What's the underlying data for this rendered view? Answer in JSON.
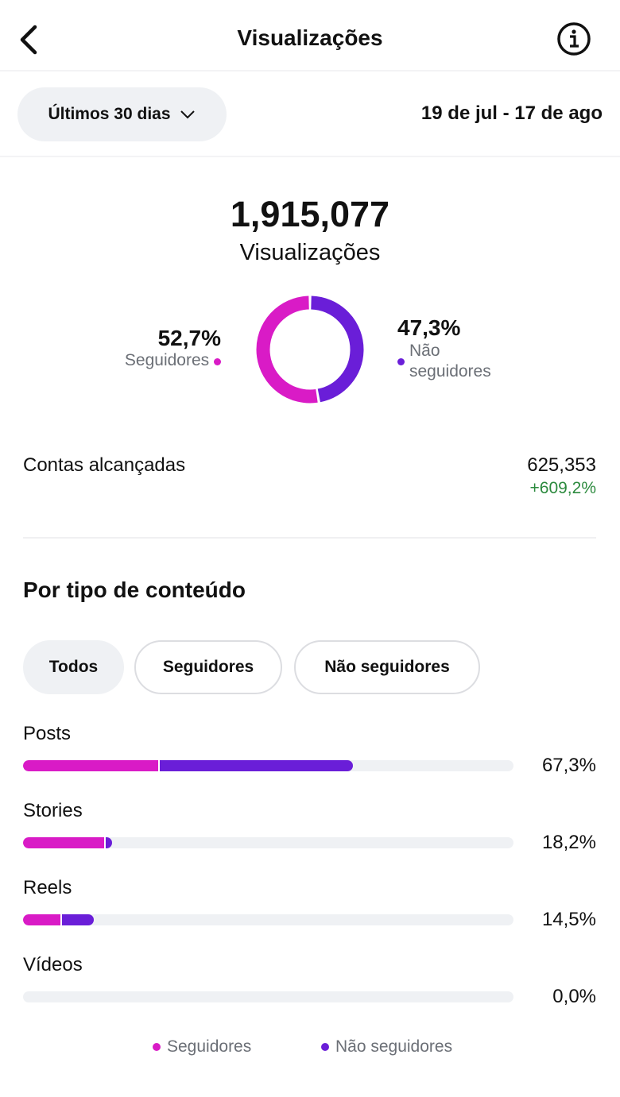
{
  "header": {
    "title": "Visualizações"
  },
  "filter": {
    "period": "Últimos 30 dias",
    "date_range": "19 de jul - 17 de ago"
  },
  "summary": {
    "total": "1,915,077",
    "label": "Visualizações"
  },
  "donut": {
    "type": "pie",
    "names": [
      "Seguidores",
      "Não seguidores"
    ],
    "values": [
      52.7,
      47.3
    ],
    "value_labels": [
      "52,7%",
      "47,3%"
    ],
    "colors": [
      "#d91bc6",
      "#6a1ed8"
    ]
  },
  "reach": {
    "label": "Contas alcançadas",
    "value": "625,353",
    "change": "+609,2%"
  },
  "content": {
    "title": "Por tipo de conteúdo",
    "tabs": [
      "Todos",
      "Seguidores",
      "Não seguidores"
    ],
    "xlim": [
      0,
      100
    ],
    "rows": [
      {
        "label": "Posts",
        "total_label": "67,3%",
        "values": [
          27.8,
          39.5
        ]
      },
      {
        "label": "Stories",
        "total_label": "18,2%",
        "values": [
          16.9,
          1.3
        ]
      },
      {
        "label": "Reels",
        "total_label": "14,5%",
        "values": [
          8.0,
          6.5
        ]
      },
      {
        "label": "Vídeos",
        "total_label": "0,0%",
        "values": [
          0,
          0
        ]
      }
    ]
  }
}
